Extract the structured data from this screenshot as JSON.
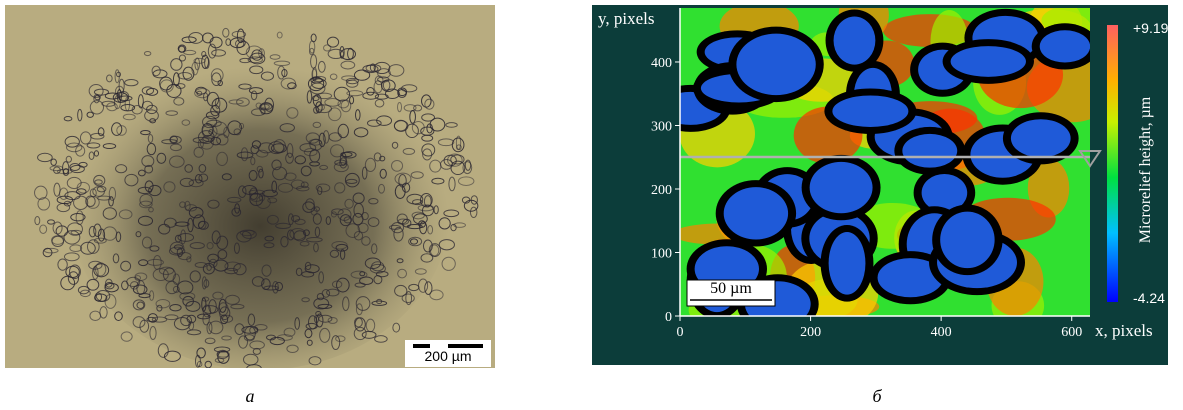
{
  "panel_a": {
    "scale_bar": "200 µm",
    "caption": "а"
  },
  "panel_b": {
    "y_axis_label": "y, pixels",
    "x_axis_label": "x, pixels",
    "xlim": [
      0,
      628
    ],
    "ylim": [
      0,
      485
    ],
    "xticks": [
      0,
      200,
      400,
      600
    ],
    "yticks": [
      0,
      100,
      200,
      300,
      400
    ],
    "scale_bar": "50 µm",
    "colorbar_label": "Microrelief height, µm",
    "colorbar_max": "+9.19",
    "colorbar_min": "-4.24",
    "caption": "б"
  }
}
